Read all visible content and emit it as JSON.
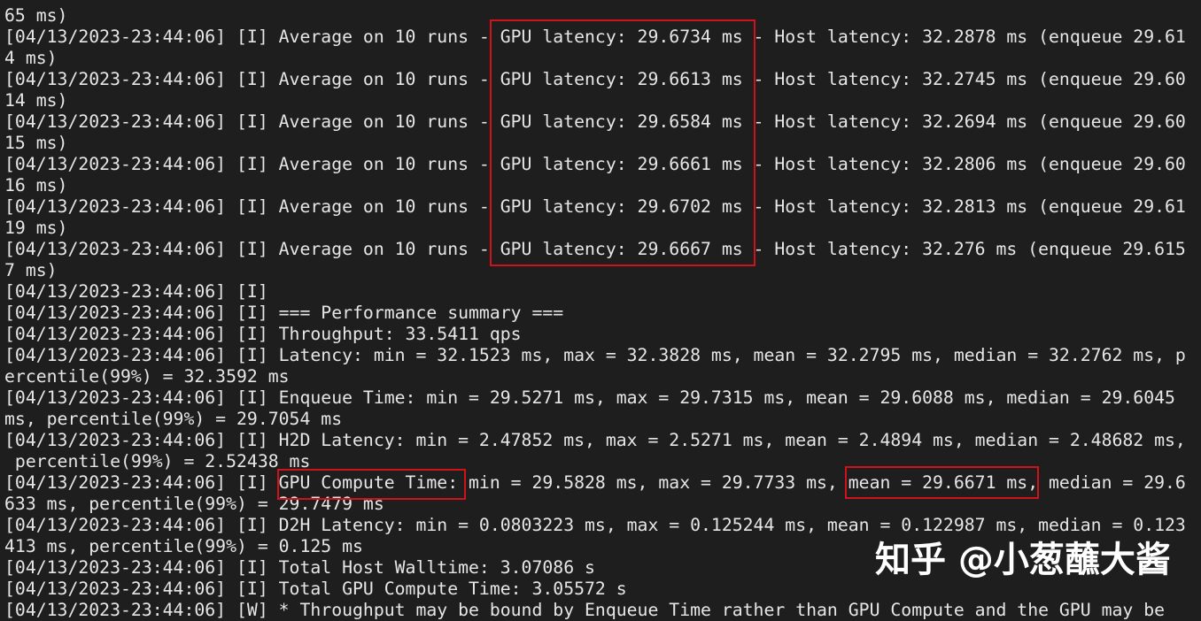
{
  "terminal": {
    "background": "#1e1e1e",
    "highlight_color": "#d0121b",
    "lines": [
      "65 ms)",
      "[04/13/2023-23:44:06] [I] Average on 10 runs - GPU latency: 29.6734 ms - Host latency: 32.2878 ms (enqueue 29.61",
      "4 ms)",
      "[04/13/2023-23:44:06] [I] Average on 10 runs - GPU latency: 29.6613 ms - Host latency: 32.2745 ms (enqueue 29.60",
      "14 ms)",
      "[04/13/2023-23:44:06] [I] Average on 10 runs - GPU latency: 29.6584 ms - Host latency: 32.2694 ms (enqueue 29.60",
      "15 ms)",
      "[04/13/2023-23:44:06] [I] Average on 10 runs - GPU latency: 29.6661 ms - Host latency: 32.2806 ms (enqueue 29.60",
      "16 ms)",
      "[04/13/2023-23:44:06] [I] Average on 10 runs - GPU latency: 29.6702 ms - Host latency: 32.2813 ms (enqueue 29.61",
      "19 ms)",
      "[04/13/2023-23:44:06] [I] Average on 10 runs - GPU latency: 29.6667 ms - Host latency: 32.276 ms (enqueue 29.615",
      "7 ms)",
      "[04/13/2023-23:44:06] [I]",
      "[04/13/2023-23:44:06] [I] === Performance summary ===",
      "[04/13/2023-23:44:06] [I] Throughput: 33.5411 qps",
      "[04/13/2023-23:44:06] [I] Latency: min = 32.1523 ms, max = 32.3828 ms, mean = 32.2795 ms, median = 32.2762 ms, p",
      "ercentile(99%) = 32.3592 ms",
      "[04/13/2023-23:44:06] [I] Enqueue Time: min = 29.5271 ms, max = 29.7315 ms, mean = 29.6088 ms, median = 29.6045",
      "ms, percentile(99%) = 29.7054 ms",
      "[04/13/2023-23:44:06] [I] H2D Latency: min = 2.47852 ms, max = 2.5271 ms, mean = 2.4894 ms, median = 2.48682 ms,",
      " percentile(99%) = 2.52438 ms",
      "[04/13/2023-23:44:06] [I] GPU Compute Time: min = 29.5828 ms, max = 29.7733 ms, mean = 29.6671 ms, median = 29.6",
      "633 ms, percentile(99%) = 29.7479 ms",
      "[04/13/2023-23:44:06] [I] D2H Latency: min = 0.0803223 ms, max = 0.125244 ms, mean = 0.122987 ms, median = 0.123",
      "413 ms, percentile(99%) = 0.125 ms",
      "[04/13/2023-23:44:06] [I] Total Host Walltime: 3.07086 s",
      "[04/13/2023-23:44:06] [I] Total GPU Compute Time: 3.05572 s",
      "[04/13/2023-23:44:06] [W] * Throughput may be bound by Enqueue Time rather than GPU Compute and the GPU may be"
    ]
  },
  "watermark": "知乎 @小葱蘸大酱"
}
